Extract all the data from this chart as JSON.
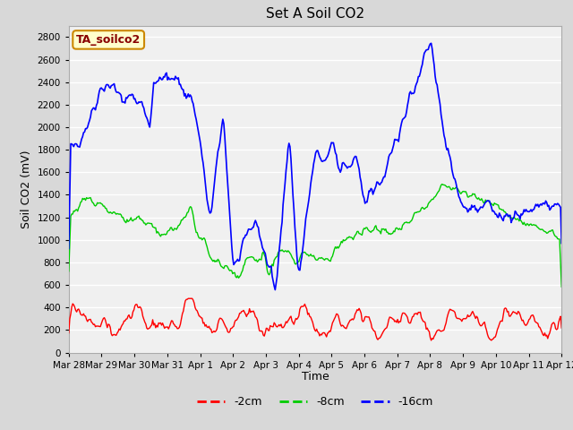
{
  "title": "Set A Soil CO2",
  "ylabel": "Soil CO2 (mV)",
  "xlabel": "Time",
  "legend_label": "TA_soilco2",
  "series_labels": [
    "-2cm",
    "-8cm",
    "-16cm"
  ],
  "series_colors": [
    "#ff0000",
    "#00cc00",
    "#0000ff"
  ],
  "ylim": [
    0,
    2900
  ],
  "yticks": [
    0,
    200,
    400,
    600,
    800,
    1000,
    1200,
    1400,
    1600,
    1800,
    2000,
    2200,
    2400,
    2600,
    2800
  ],
  "bg_color": "#d8d8d8",
  "plot_bg_color": "#f0f0f0",
  "grid_color": "#ffffff",
  "n_points": 500,
  "start_day": 0,
  "end_day": 15
}
